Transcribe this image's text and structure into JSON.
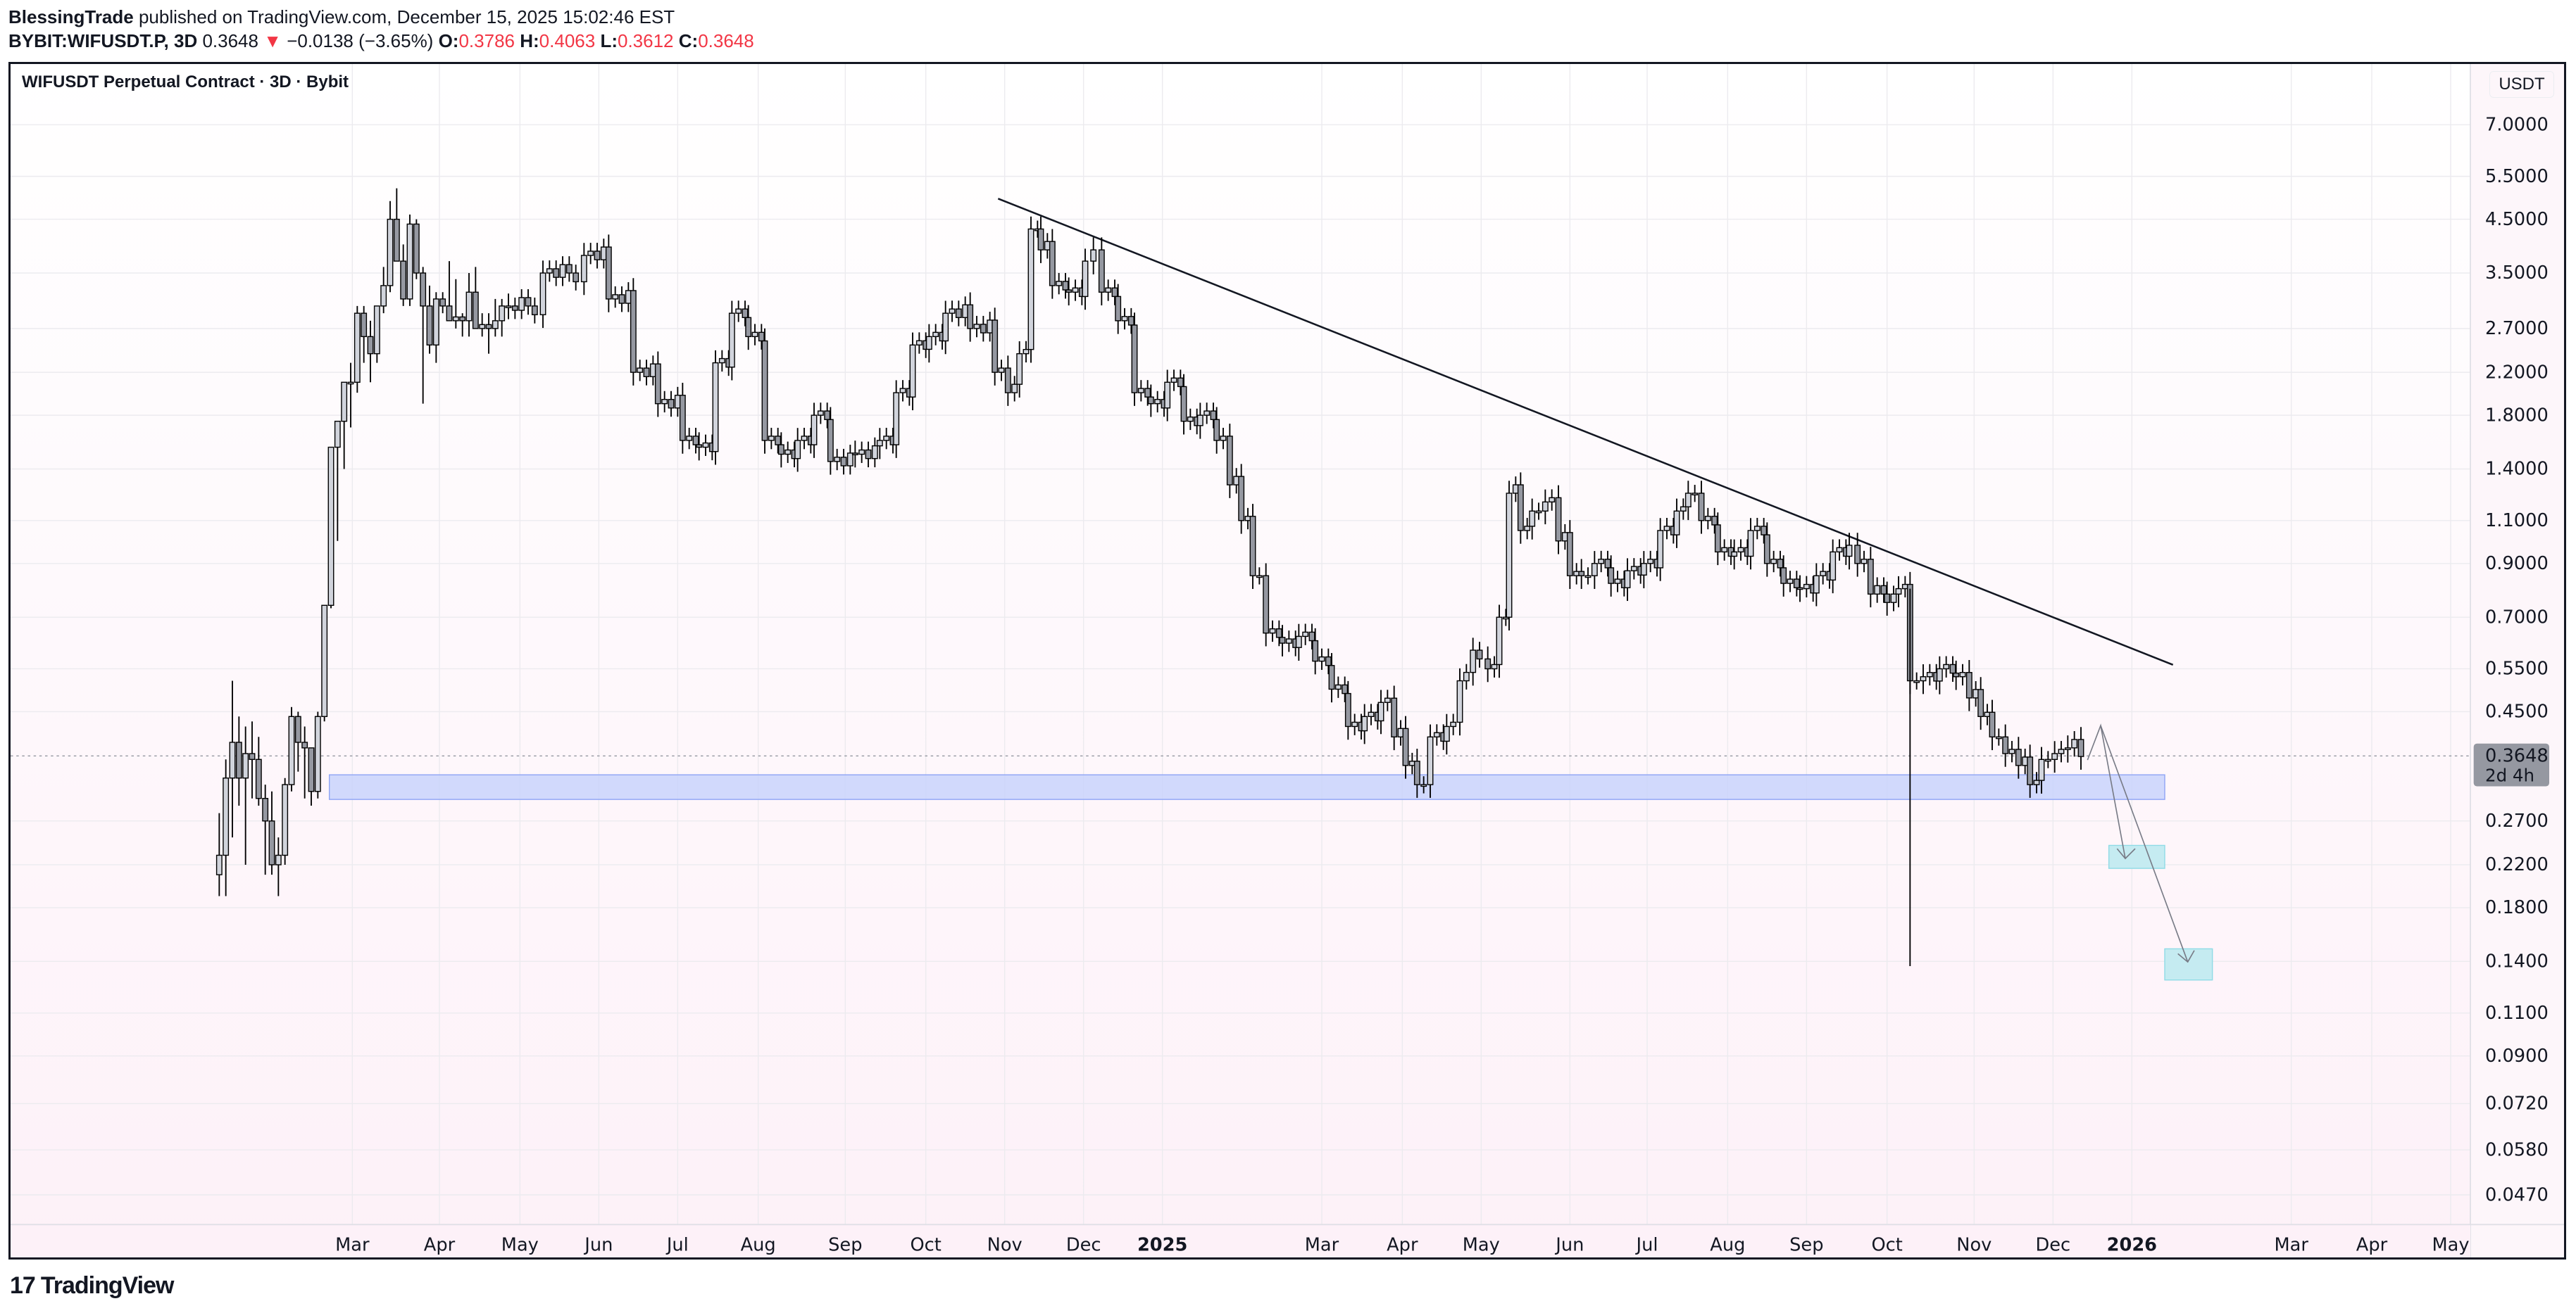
{
  "header": {
    "author": "BlessingTrade",
    "published": "published on TradingView.com, December 15, 2025 15:02:46 EST",
    "symbol": "BYBIT:WIFUSDT.P, 3D",
    "last": "0.3648",
    "change_arrow": "▼",
    "change": "−0.0138 (−3.65%)",
    "o_label": "O:",
    "o": "0.3786",
    "h_label": "H:",
    "h": "0.4063",
    "l_label": "L:",
    "l": "0.3612",
    "c_label": "C:",
    "c": "0.3648"
  },
  "chart_title": "WIFUSDT Perpetual Contract · 3D · Bybit",
  "currency": "USDT",
  "price_tag": {
    "price": "0.3648",
    "countdown": "2d 4h"
  },
  "footer": {
    "brand": "TradingView",
    "logo": "17"
  },
  "colors": {
    "up_body": "#d1d4dc",
    "down_body": "#9598a1",
    "wick": "#000000",
    "zone_blue": "#c9d4fb",
    "zone_blue_border": "#8ea4f5",
    "target_cyan": "#c5ebf1",
    "target_border": "#8fdbe6"
  },
  "chart_data": {
    "type": "candlestick",
    "title": "WIFUSDT Perpetual Contract · 3D · Bybit",
    "ylabel": "USDT",
    "yscale": "log",
    "ylim": [
      0.045,
      7.5
    ],
    "y_ticks": [
      "7.0000",
      "5.5000",
      "4.5000",
      "3.5000",
      "2.7000",
      "2.2000",
      "1.8000",
      "1.4000",
      "1.1000",
      "0.9000",
      "0.7000",
      "0.5500",
      "0.4500",
      "0.2700",
      "0.2200",
      "0.1800",
      "0.1400",
      "0.1100",
      "0.0900",
      "0.0720",
      "0.0580",
      "0.0470"
    ],
    "x_ticks": [
      {
        "label": "Mar",
        "x": 214
      },
      {
        "label": "Apr",
        "x": 267
      },
      {
        "label": "May",
        "x": 316
      },
      {
        "label": "Jun",
        "x": 364
      },
      {
        "label": "Jul",
        "x": 412
      },
      {
        "label": "Aug",
        "x": 461
      },
      {
        "label": "Sep",
        "x": 514
      },
      {
        "label": "Oct",
        "x": 563
      },
      {
        "label": "Nov",
        "x": 611
      },
      {
        "label": "Dec",
        "x": 659
      },
      {
        "label": "2025",
        "x": 707,
        "bold": true
      },
      {
        "label": "Mar",
        "x": 804
      },
      {
        "label": "Apr",
        "x": 853
      },
      {
        "label": "May",
        "x": 901
      },
      {
        "label": "Jun",
        "x": 955
      },
      {
        "label": "Jul",
        "x": 1002
      },
      {
        "label": "Aug",
        "x": 1051
      },
      {
        "label": "Sep",
        "x": 1099
      },
      {
        "label": "Oct",
        "x": 1148
      },
      {
        "label": "Nov",
        "x": 1201
      },
      {
        "label": "Dec",
        "x": 1249
      },
      {
        "label": "2026",
        "x": 1297,
        "bold": true
      },
      {
        "label": "Mar",
        "x": 1394
      },
      {
        "label": "Apr",
        "x": 1443
      },
      {
        "label": "May",
        "x": 1491
      }
    ],
    "candles_note": "Approximate 3D OHLC, Feb 2024 – Dec 2025 (x in preview px)",
    "candles": [
      [
        133,
        0.21,
        0.28,
        0.19,
        0.23
      ],
      [
        137,
        0.23,
        0.36,
        0.19,
        0.33
      ],
      [
        141,
        0.33,
        0.52,
        0.25,
        0.39
      ],
      [
        145,
        0.39,
        0.44,
        0.29,
        0.33
      ],
      [
        149,
        0.33,
        0.42,
        0.22,
        0.37
      ],
      [
        153,
        0.37,
        0.43,
        0.3,
        0.36
      ],
      [
        157,
        0.36,
        0.4,
        0.29,
        0.3
      ],
      [
        161,
        0.3,
        0.32,
        0.21,
        0.27
      ],
      [
        165,
        0.27,
        0.31,
        0.21,
        0.22
      ],
      [
        169,
        0.22,
        0.25,
        0.19,
        0.23
      ],
      [
        173,
        0.23,
        0.33,
        0.22,
        0.32
      ],
      [
        177,
        0.32,
        0.46,
        0.31,
        0.44
      ],
      [
        181,
        0.44,
        0.45,
        0.34,
        0.39
      ],
      [
        185,
        0.39,
        0.42,
        0.3,
        0.38
      ],
      [
        189,
        0.38,
        0.38,
        0.29,
        0.31
      ],
      [
        193,
        0.31,
        0.45,
        0.3,
        0.44
      ],
      [
        197,
        0.44,
        0.7,
        0.43,
        0.74
      ],
      [
        201,
        0.74,
        0.95,
        0.73,
        1.55
      ],
      [
        205,
        1.55,
        1.75,
        1.0,
        1.75
      ],
      [
        209,
        1.75,
        2.0,
        1.4,
        2.1
      ],
      [
        213,
        2.1,
        2.3,
        1.7,
        2.1
      ],
      [
        217,
        2.1,
        3.0,
        2.0,
        2.9
      ],
      [
        221,
        2.9,
        3.0,
        2.3,
        2.6
      ],
      [
        225,
        2.6,
        2.8,
        2.1,
        2.4
      ],
      [
        229,
        2.4,
        3.0,
        2.3,
        3.0
      ],
      [
        233,
        3.0,
        3.6,
        2.9,
        3.3
      ],
      [
        237,
        3.3,
        4.9,
        3.2,
        4.5
      ],
      [
        241,
        4.5,
        5.2,
        3.8,
        3.7
      ],
      [
        245,
        3.7,
        4.0,
        3.0,
        3.1
      ],
      [
        249,
        3.1,
        4.6,
        3.0,
        4.4
      ],
      [
        253,
        4.4,
        4.5,
        3.4,
        3.5
      ],
      [
        257,
        3.5,
        3.6,
        1.9,
        3.0
      ],
      [
        261,
        3.0,
        3.3,
        2.4,
        2.5
      ],
      [
        265,
        2.5,
        3.2,
        2.3,
        3.1
      ],
      [
        269,
        3.1,
        3.2,
        2.9,
        3.0
      ],
      [
        273,
        3.0,
        3.7,
        2.8,
        2.8
      ],
      [
        277,
        2.8,
        3.4,
        2.7,
        2.85
      ],
      [
        281,
        2.85,
        2.9,
        2.6,
        2.8
      ],
      [
        285,
        2.8,
        3.5,
        2.6,
        3.2
      ],
      [
        289,
        3.2,
        3.6,
        2.7,
        2.7
      ],
      [
        293,
        2.7,
        2.9,
        2.6,
        2.75
      ],
      [
        297,
        2.75,
        2.9,
        2.4,
        2.7
      ],
      [
        301,
        2.7,
        3.1,
        2.6,
        2.8
      ],
      [
        305,
        2.8,
        3.1,
        2.6,
        3.0
      ]
    ]
  }
}
